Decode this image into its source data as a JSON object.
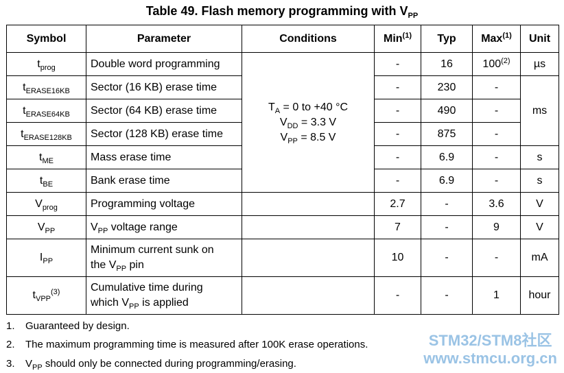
{
  "title": [
    {
      "t": "Table 49. Flash memory programming with V"
    },
    {
      "sub": "PP"
    }
  ],
  "table": {
    "header": {
      "symbol": "Symbol",
      "parameter": "Parameter",
      "conditions": "Conditions",
      "min": [
        {
          "t": "Min"
        },
        {
          "sup": "(1)"
        }
      ],
      "typ": "Typ",
      "max": [
        {
          "t": "Max"
        },
        {
          "sup": "(1)"
        }
      ],
      "unit": "Unit"
    },
    "conditions": [
      [
        {
          "t": "T"
        },
        {
          "sub": "A"
        },
        {
          "t": " = 0 to +40 °C"
        }
      ],
      [
        {
          "t": "V"
        },
        {
          "sub": "DD"
        },
        {
          "t": " = 3.3 V"
        }
      ],
      [
        {
          "t": "V"
        },
        {
          "sub": "PP"
        },
        {
          "t": " = 8.5 V"
        }
      ]
    ],
    "rows": [
      {
        "symbol": [
          {
            "t": "t"
          },
          {
            "sub": "prog"
          }
        ],
        "parameter": "Double word programming",
        "min": "-",
        "typ": 16,
        "max": [
          {
            "t": "100"
          },
          {
            "sup": "(2)"
          }
        ],
        "unit": "µs"
      },
      {
        "symbol": [
          {
            "t": "t"
          },
          {
            "sub": "ERASE16KB"
          }
        ],
        "parameter": "Sector (16 KB) erase time",
        "min": "-",
        "typ": 230,
        "max": "-",
        "unit": "ms"
      },
      {
        "symbol": [
          {
            "t": "t"
          },
          {
            "sub": "ERASE64KB"
          }
        ],
        "parameter": "Sector (64 KB) erase time",
        "min": "-",
        "typ": 490,
        "max": "-"
      },
      {
        "symbol": [
          {
            "t": "t"
          },
          {
            "sub": "ERASE128KB"
          }
        ],
        "parameter": "Sector (128 KB) erase time",
        "min": "-",
        "typ": 875,
        "max": "-"
      },
      {
        "symbol": [
          {
            "t": "t"
          },
          {
            "sub": "ME"
          }
        ],
        "parameter": "Mass erase time",
        "min": "-",
        "typ": 6.9,
        "max": "-",
        "unit": "s"
      },
      {
        "symbol": [
          {
            "t": "t"
          },
          {
            "sub": "BE"
          }
        ],
        "parameter": "Bank erase time",
        "min": "-",
        "typ": 6.9,
        "max": "-",
        "unit": "s"
      },
      {
        "symbol": [
          {
            "t": "V"
          },
          {
            "sub": "prog"
          }
        ],
        "parameter": "Programming voltage",
        "min": 2.7,
        "typ": "-",
        "max": 3.6,
        "unit": "V"
      },
      {
        "symbol": [
          {
            "t": "V"
          },
          {
            "sub": "PP"
          }
        ],
        "parameter": [
          {
            "t": "V"
          },
          {
            "sub": "PP"
          },
          {
            "t": " voltage range"
          }
        ],
        "min": 7,
        "typ": "-",
        "max": 9,
        "unit": "V"
      },
      {
        "symbol": [
          {
            "t": "I"
          },
          {
            "sub": "PP"
          }
        ],
        "parameter": [
          [
            {
              "t": "Minimum current sunk on"
            }
          ],
          [
            {
              "t": "the V"
            },
            {
              "sub": "PP"
            },
            {
              "t": " pin"
            }
          ]
        ],
        "min": 10,
        "typ": "-",
        "max": "-",
        "unit": "mA"
      },
      {
        "symbol": [
          {
            "t": "t"
          },
          {
            "sub": "VPP"
          },
          {
            "sup": "(3)"
          }
        ],
        "parameter": [
          [
            {
              "t": "Cumulative time during"
            }
          ],
          [
            {
              "t": "which V"
            },
            {
              "sub": "PP"
            },
            {
              "t": " is applied"
            }
          ]
        ],
        "min": "-",
        "typ": "-",
        "max": 1,
        "unit": "hour"
      }
    ]
  },
  "footnotes": [
    {
      "number": "1.",
      "text": [
        {
          "t": "Guaranteed by design."
        }
      ]
    },
    {
      "number": "2.",
      "text": [
        {
          "t": "The maximum programming time is measured after 100K erase operations."
        }
      ]
    },
    {
      "number": "3.",
      "text": [
        {
          "t": "V"
        },
        {
          "sub": "PP"
        },
        {
          "t": " should only be connected during programming/erasing."
        }
      ]
    }
  ],
  "watermark": {
    "line1": "STM32/STM8社区",
    "line2": "www.stmcu.org.cn"
  }
}
